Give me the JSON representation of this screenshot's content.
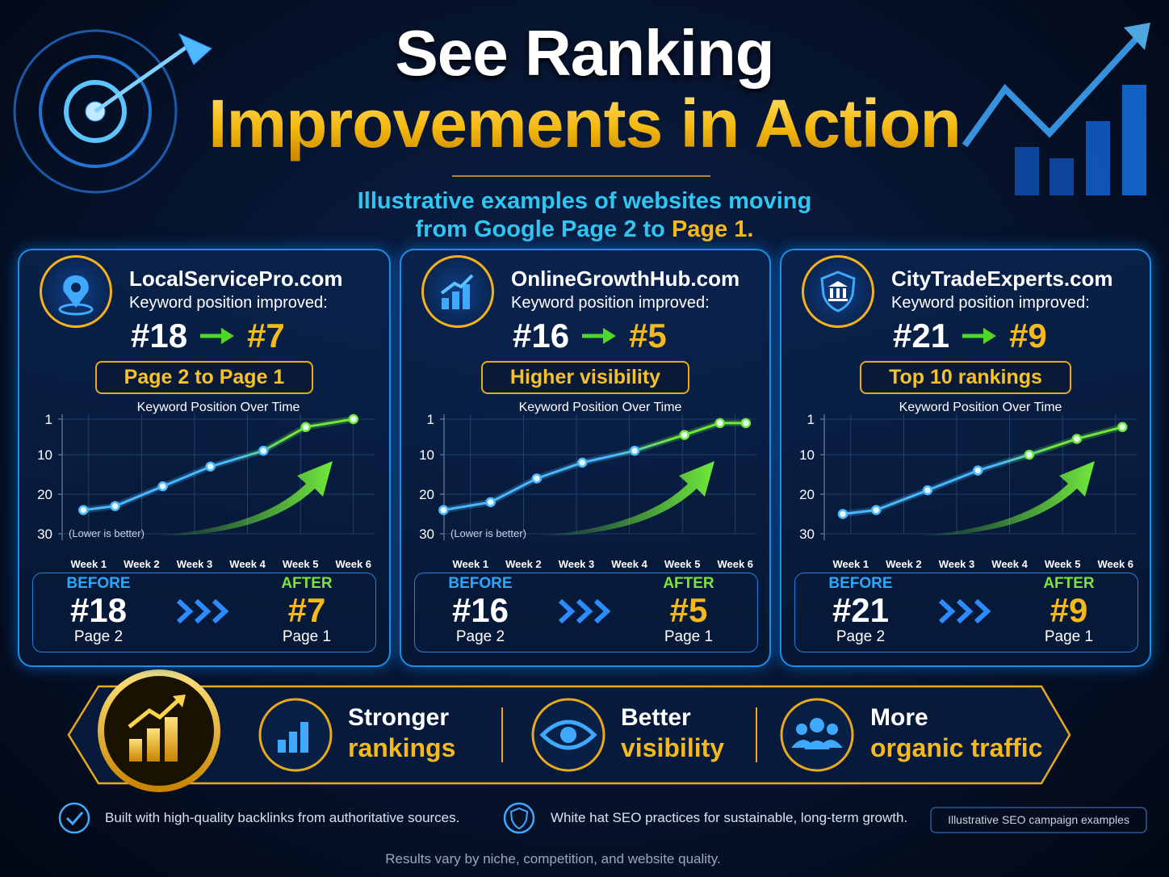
{
  "header": {
    "title_line1": "See Ranking",
    "title_line2": "Improvements in Action",
    "subtitle_line1": "Illustrative examples of websites moving",
    "subtitle_line2": "from Google Page 2 to",
    "subtitle_highlight": "Page 1."
  },
  "cards": [
    {
      "site": "LocalServicePro.com",
      "label": "Keyword position improved:",
      "from": "#18",
      "to": "#7",
      "badge": "Page 2 to Page 1",
      "before_label": "BEFORE",
      "before_rank": "#18",
      "before_page": "Page 2",
      "after_label": "AFTER",
      "after_rank": "#7",
      "after_page": "Page 1"
    },
    {
      "site": "OnlineGrowthHub.com",
      "label": "Keyword position improved:",
      "from": "#16",
      "to": "#5",
      "badge": "Higher visibility",
      "before_label": "BEFORE",
      "before_rank": "#16",
      "before_page": "Page 2",
      "after_label": "AFTER",
      "after_rank": "#5",
      "after_page": "Page 1"
    },
    {
      "site": "CityTradeExperts.com",
      "label": "Keyword position improved:",
      "from": "#21",
      "to": "#9",
      "badge": "Top 10 rankings",
      "before_label": "BEFORE",
      "before_rank": "#21",
      "before_page": "Page 2",
      "after_label": "AFTER",
      "after_rank": "#9",
      "after_page": "Page 1"
    }
  ],
  "chart_data": [
    {
      "type": "line",
      "title": "Keyword Position Over Time",
      "x": [
        0.9,
        1.5,
        2.4,
        3.3,
        4.3,
        5.1,
        6.0
      ],
      "values": [
        24,
        23,
        18,
        13,
        9,
        3,
        1
      ],
      "xlim": [
        0.5,
        6.4
      ],
      "xticks": [
        {
          "value": 1,
          "label": "Week 1"
        },
        {
          "value": 2,
          "label": "Week 2"
        },
        {
          "value": 3,
          "label": "Week 3"
        },
        {
          "value": 4,
          "label": "Week 4"
        },
        {
          "value": 5,
          "label": "Week 5"
        },
        {
          "value": 6,
          "label": "Week 6"
        }
      ],
      "ylim": [
        30,
        1
      ],
      "yticks": [
        1,
        10,
        20,
        30
      ],
      "grid": true,
      "colors": [
        "#49b8ff",
        "#6fe83a"
      ],
      "annotation": "(Lower is better)"
    },
    {
      "type": "line",
      "title": "Keyword Position Over Time",
      "x": [
        0.49,
        1.38,
        2.25,
        3.11,
        4.1,
        5.04,
        5.71,
        6.2
      ],
      "values": [
        24,
        22,
        16,
        12,
        9,
        5,
        2,
        2
      ],
      "xlim": [
        0.5,
        6.4
      ],
      "xticks": [
        {
          "value": 1,
          "label": "Week 1"
        },
        {
          "value": 2,
          "label": "Week 2"
        },
        {
          "value": 3,
          "label": "Week 3"
        },
        {
          "value": 4,
          "label": "Week 4"
        },
        {
          "value": 5,
          "label": "Week 5"
        },
        {
          "value": 6,
          "label": "Week 6"
        }
      ],
      "ylim": [
        30,
        1
      ],
      "yticks": [
        1,
        10,
        20,
        30
      ],
      "grid": true,
      "colors": [
        "#49b8ff",
        "#6fe83a"
      ],
      "annotation": "(Lower is better)"
    },
    {
      "type": "line",
      "title": "Keyword Position Over Time",
      "x": [
        0.85,
        1.48,
        2.45,
        3.4,
        4.37,
        5.27,
        6.13
      ],
      "values": [
        25,
        24,
        19,
        14,
        10,
        6,
        3
      ],
      "xlim": [
        0.5,
        6.4
      ],
      "xticks": [
        {
          "value": 1,
          "label": "Week 1"
        },
        {
          "value": 2,
          "label": "Week 2"
        },
        {
          "value": 3,
          "label": "Week 3"
        },
        {
          "value": 4,
          "label": "Week 4"
        },
        {
          "value": 5,
          "label": "Week 5"
        },
        {
          "value": 6,
          "label": "Week 6"
        }
      ],
      "ylim": [
        30,
        1
      ],
      "yticks": [
        1,
        10,
        20,
        30
      ],
      "grid": true,
      "colors": [
        "#49b8ff",
        "#6fe83a"
      ]
    }
  ],
  "benefits": [
    {
      "line1": "Stronger",
      "line2": "rankings"
    },
    {
      "line1": "Better",
      "line2": "visibility"
    },
    {
      "line1": "More",
      "line2": "organic traffic"
    }
  ],
  "notes": [
    "Built with high-quality backlinks from authoritative sources.",
    "White hat SEO practices for sustainable, long-term growth."
  ],
  "tag": "Illustrative SEO campaign examples",
  "disclaimer": "Results vary by niche, competition, and website quality."
}
